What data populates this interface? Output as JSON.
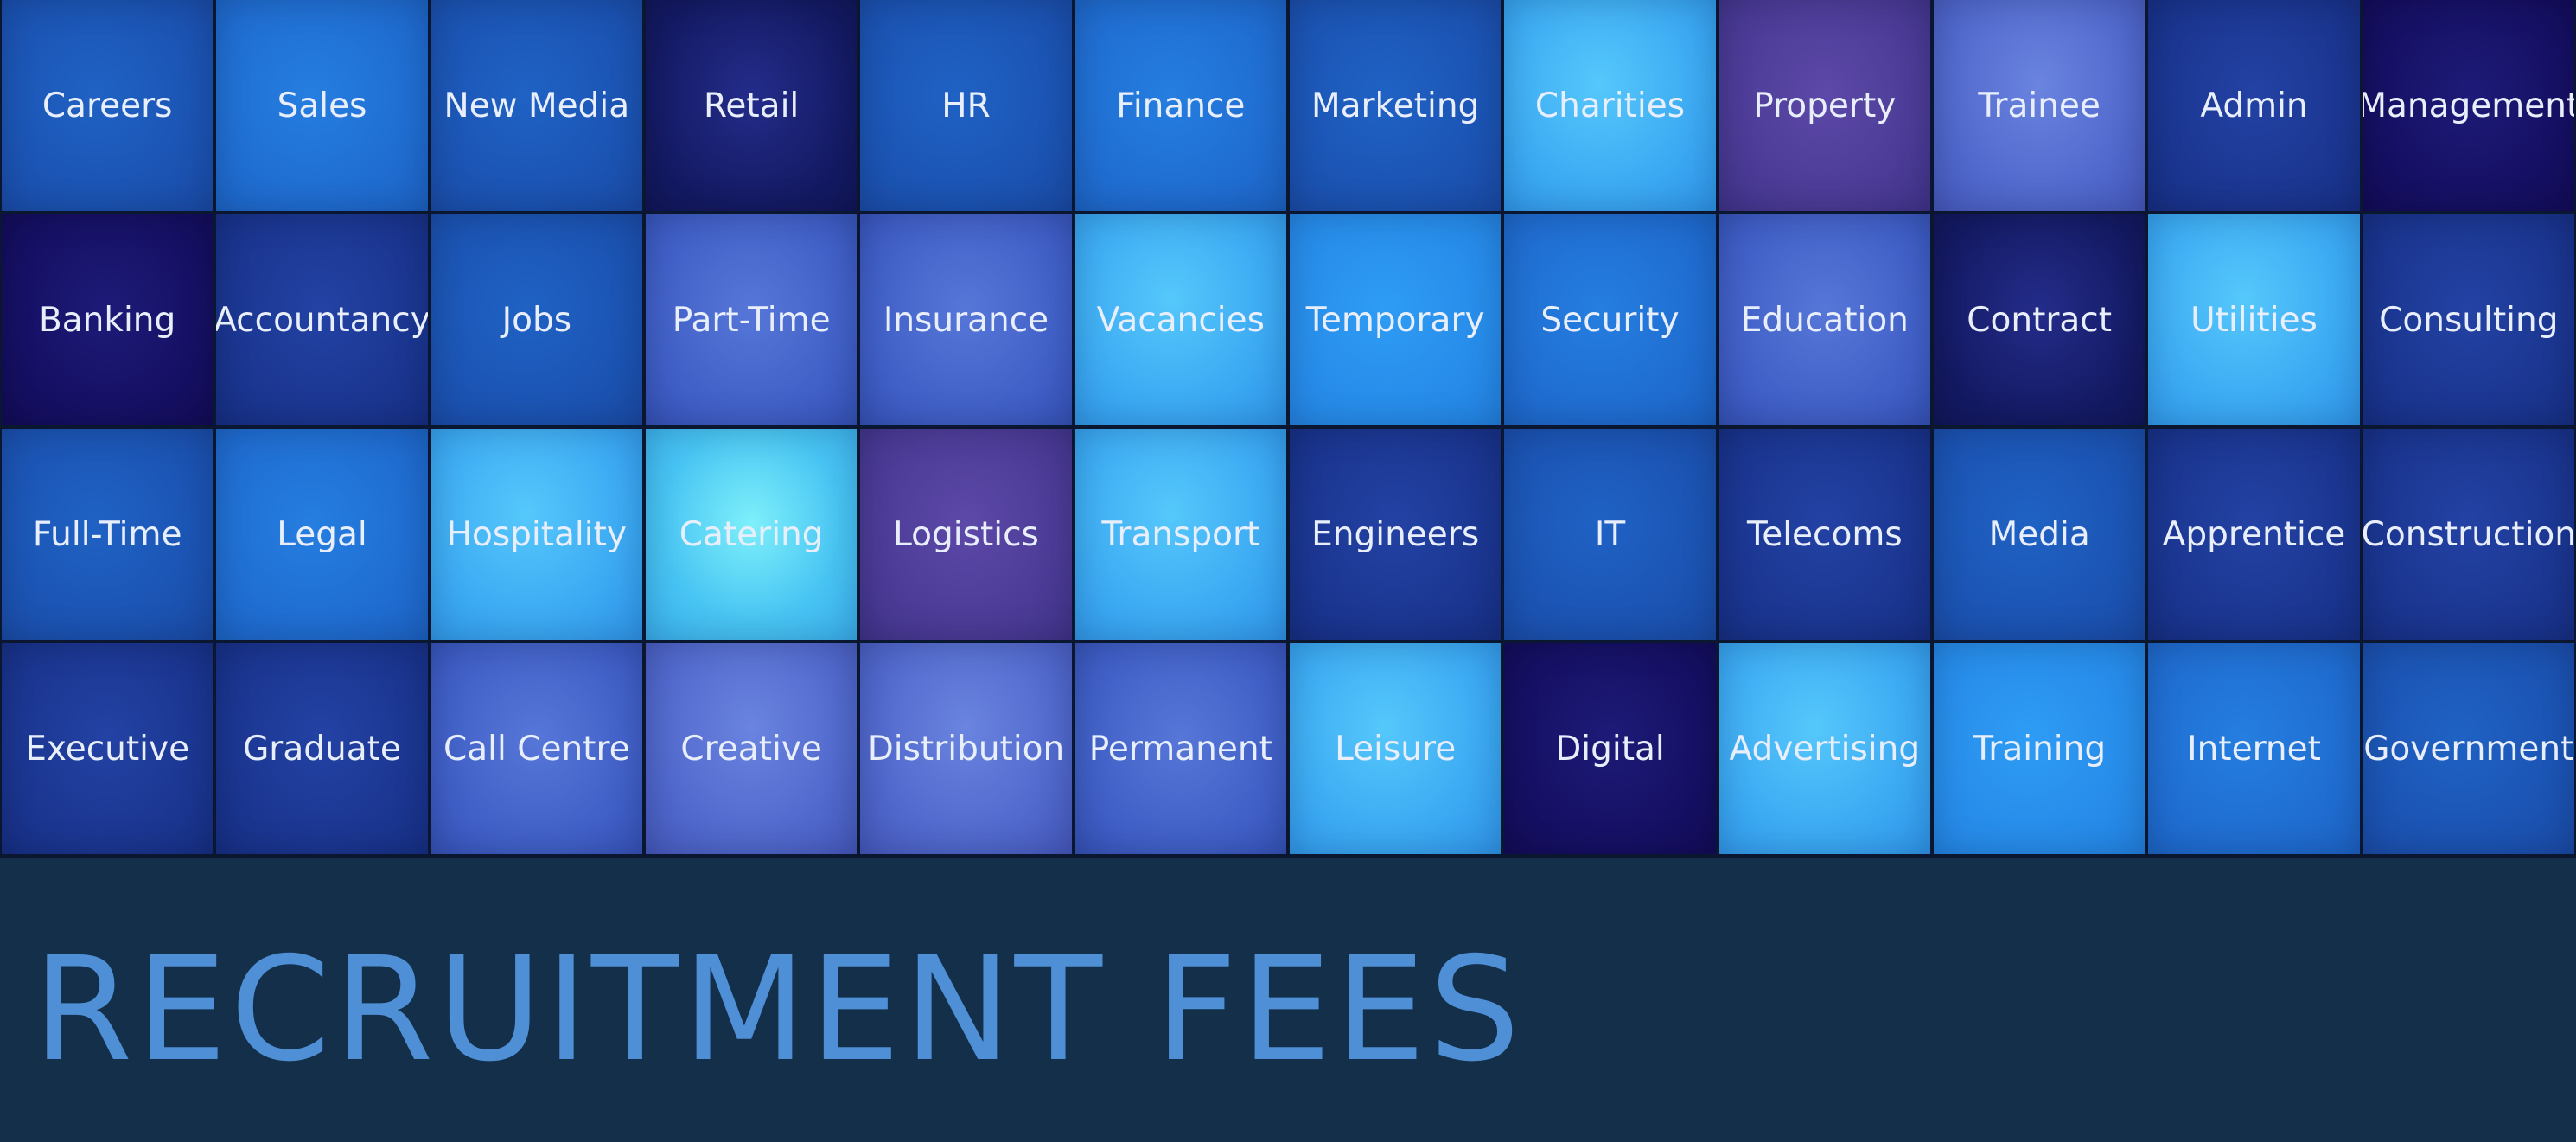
{
  "tiles": [
    {
      "label": "Careers",
      "tone": "c-mid"
    },
    {
      "label": "Sales",
      "tone": "c-blue"
    },
    {
      "label": "New Media",
      "tone": "c-mid"
    },
    {
      "label": "Retail",
      "tone": "c-navy"
    },
    {
      "label": "HR",
      "tone": "c-mid"
    },
    {
      "label": "Finance",
      "tone": "c-blue"
    },
    {
      "label": "Marketing",
      "tone": "c-mid"
    },
    {
      "label": "Charities",
      "tone": "c-light"
    },
    {
      "label": "Property",
      "tone": "c-purple"
    },
    {
      "label": "Trainee",
      "tone": "c-violet"
    },
    {
      "label": "Admin",
      "tone": "c-dark"
    },
    {
      "label": "Management",
      "tone": "c-indigo"
    },
    {
      "label": "Banking",
      "tone": "c-indigo"
    },
    {
      "label": "Accountancy",
      "tone": "c-dark"
    },
    {
      "label": "Jobs",
      "tone": "c-mid"
    },
    {
      "label": "Part-Time",
      "tone": "c-periw"
    },
    {
      "label": "Insurance",
      "tone": "c-periw"
    },
    {
      "label": "Vacancies",
      "tone": "c-light"
    },
    {
      "label": "Temporary",
      "tone": "c-bright"
    },
    {
      "label": "Security",
      "tone": "c-blue"
    },
    {
      "label": "Education",
      "tone": "c-periw"
    },
    {
      "label": "Contract",
      "tone": "c-navy"
    },
    {
      "label": "Utilities",
      "tone": "c-light"
    },
    {
      "label": "Consulting",
      "tone": "c-dark"
    },
    {
      "label": "Full-Time",
      "tone": "c-mid"
    },
    {
      "label": "Legal",
      "tone": "c-blue"
    },
    {
      "label": "Hospitality",
      "tone": "c-light"
    },
    {
      "label": "Catering",
      "tone": "c-cyan"
    },
    {
      "label": "Logistics",
      "tone": "c-purple"
    },
    {
      "label": "Transport",
      "tone": "c-light"
    },
    {
      "label": "Engineers",
      "tone": "c-dark"
    },
    {
      "label": "IT",
      "tone": "c-mid"
    },
    {
      "label": "Telecoms",
      "tone": "c-dark"
    },
    {
      "label": "Media",
      "tone": "c-mid"
    },
    {
      "label": "Apprentice",
      "tone": "c-dark"
    },
    {
      "label": "Construction",
      "tone": "c-dark"
    },
    {
      "label": "Executive",
      "tone": "c-dark"
    },
    {
      "label": "Graduate",
      "tone": "c-dark"
    },
    {
      "label": "Call Centre",
      "tone": "c-periw"
    },
    {
      "label": "Creative",
      "tone": "c-violet"
    },
    {
      "label": "Distribution",
      "tone": "c-violet"
    },
    {
      "label": "Permanent",
      "tone": "c-periw"
    },
    {
      "label": "Leisure",
      "tone": "c-light"
    },
    {
      "label": "Digital",
      "tone": "c-indigo"
    },
    {
      "label": "Advertising",
      "tone": "c-light"
    },
    {
      "label": "Training",
      "tone": "c-bright"
    },
    {
      "label": "Internet",
      "tone": "c-blue"
    },
    {
      "label": "Government",
      "tone": "c-mid"
    }
  ],
  "headline": "RECRUITMENT FEES",
  "colors": {
    "footer_background": "#132f4a",
    "headline_text": "#4f8fd6",
    "tile_text": "#e9eefb"
  }
}
